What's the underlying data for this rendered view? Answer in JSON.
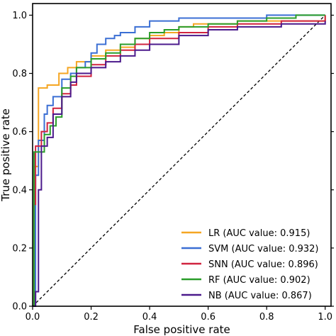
{
  "chart_data": {
    "type": "line",
    "title": "",
    "xlabel": "False positive rate",
    "ylabel": "True positive rate",
    "xlim": [
      0,
      1.02
    ],
    "ylim": [
      0,
      1.04
    ],
    "xticks": [
      "0.0",
      "0.2",
      "0.4",
      "0.6",
      "0.8",
      "1.0"
    ],
    "yticks": [
      "0.0",
      "0.2",
      "0.4",
      "0.6",
      "0.8",
      "1.0"
    ],
    "grid": false,
    "legend_position": "lower-right",
    "diagonal": {
      "style": "dashed",
      "color": "#000000",
      "from": [
        0,
        0
      ],
      "to": [
        1,
        1
      ]
    },
    "series": [
      {
        "name": "LR (AUC value: 0.915)",
        "color": "#f5a623",
        "points": [
          [
            0,
            0
          ],
          [
            0.005,
            0.48
          ],
          [
            0.02,
            0.75
          ],
          [
            0.04,
            0.75
          ],
          [
            0.05,
            0.76
          ],
          [
            0.08,
            0.76
          ],
          [
            0.09,
            0.8
          ],
          [
            0.12,
            0.82
          ],
          [
            0.15,
            0.84
          ],
          [
            0.2,
            0.86
          ],
          [
            0.25,
            0.88
          ],
          [
            0.3,
            0.89
          ],
          [
            0.35,
            0.92
          ],
          [
            0.4,
            0.93
          ],
          [
            0.45,
            0.94
          ],
          [
            0.5,
            0.96
          ],
          [
            0.55,
            0.97
          ],
          [
            0.6,
            0.97
          ],
          [
            0.7,
            0.98
          ],
          [
            1,
            1
          ]
        ]
      },
      {
        "name": "SVM (AUC value: 0.932)",
        "color": "#3b6fd4",
        "points": [
          [
            0,
            0
          ],
          [
            0.01,
            0.45
          ],
          [
            0.02,
            0.57
          ],
          [
            0.04,
            0.66
          ],
          [
            0.05,
            0.69
          ],
          [
            0.07,
            0.72
          ],
          [
            0.1,
            0.78
          ],
          [
            0.13,
            0.8
          ],
          [
            0.15,
            0.82
          ],
          [
            0.18,
            0.84
          ],
          [
            0.2,
            0.87
          ],
          [
            0.22,
            0.9
          ],
          [
            0.25,
            0.92
          ],
          [
            0.28,
            0.93
          ],
          [
            0.3,
            0.94
          ],
          [
            0.35,
            0.96
          ],
          [
            0.4,
            0.98
          ],
          [
            0.5,
            0.99
          ],
          [
            0.6,
            0.99
          ],
          [
            0.8,
            1.0
          ],
          [
            1,
            1
          ]
        ]
      },
      {
        "name": "SNN (AUC value: 0.896)",
        "color": "#d0233f",
        "points": [
          [
            0,
            0
          ],
          [
            0.005,
            0.35
          ],
          [
            0.01,
            0.55
          ],
          [
            0.03,
            0.6
          ],
          [
            0.05,
            0.63
          ],
          [
            0.07,
            0.68
          ],
          [
            0.1,
            0.73
          ],
          [
            0.13,
            0.76
          ],
          [
            0.15,
            0.79
          ],
          [
            0.2,
            0.83
          ],
          [
            0.25,
            0.86
          ],
          [
            0.3,
            0.88
          ],
          [
            0.35,
            0.9
          ],
          [
            0.4,
            0.92
          ],
          [
            0.5,
            0.94
          ],
          [
            0.6,
            0.96
          ],
          [
            0.7,
            0.97
          ],
          [
            0.85,
            0.98
          ],
          [
            1,
            1
          ]
        ]
      },
      {
        "name": "RF (AUC value: 0.902)",
        "color": "#2a9d2a",
        "points": [
          [
            0,
            0
          ],
          [
            0.005,
            0.53
          ],
          [
            0.02,
            0.53
          ],
          [
            0.04,
            0.59
          ],
          [
            0.06,
            0.62
          ],
          [
            0.08,
            0.65
          ],
          [
            0.1,
            0.75
          ],
          [
            0.13,
            0.79
          ],
          [
            0.15,
            0.82
          ],
          [
            0.2,
            0.85
          ],
          [
            0.25,
            0.87
          ],
          [
            0.3,
            0.9
          ],
          [
            0.35,
            0.92
          ],
          [
            0.4,
            0.94
          ],
          [
            0.45,
            0.95
          ],
          [
            0.5,
            0.96
          ],
          [
            0.6,
            0.97
          ],
          [
            0.7,
            0.98
          ],
          [
            0.8,
            0.99
          ],
          [
            0.9,
            1.0
          ],
          [
            1,
            1
          ]
        ]
      },
      {
        "name": "NB (AUC value: 0.867)",
        "color": "#4b1a8c",
        "points": [
          [
            0,
            0
          ],
          [
            0.01,
            0.05
          ],
          [
            0.02,
            0.4
          ],
          [
            0.03,
            0.55
          ],
          [
            0.05,
            0.58
          ],
          [
            0.07,
            0.66
          ],
          [
            0.1,
            0.72
          ],
          [
            0.13,
            0.77
          ],
          [
            0.15,
            0.8
          ],
          [
            0.2,
            0.82
          ],
          [
            0.25,
            0.84
          ],
          [
            0.3,
            0.86
          ],
          [
            0.35,
            0.88
          ],
          [
            0.4,
            0.9
          ],
          [
            0.5,
            0.93
          ],
          [
            0.6,
            0.95
          ],
          [
            0.7,
            0.96
          ],
          [
            0.85,
            0.97
          ],
          [
            1,
            0.98
          ]
        ]
      }
    ]
  }
}
